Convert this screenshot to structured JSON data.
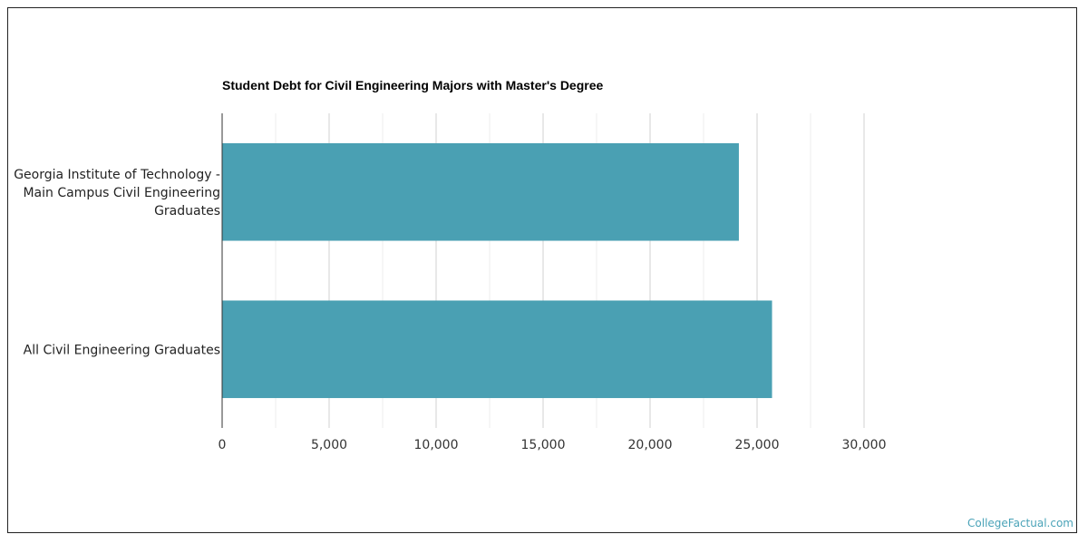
{
  "chart_data": {
    "type": "bar",
    "orientation": "horizontal",
    "title": "Student Debt for Civil Engineering Majors with Master's Degree",
    "categories": [
      "Georgia Institute of Technology - Main Campus Civil Engineering Graduates",
      "All Civil Engineering Graduates"
    ],
    "category_label_lines": [
      [
        "Georgia Institute of Technology -",
        "Main Campus Civil Engineering",
        "Graduates"
      ],
      [
        "All Civil Engineering Graduates"
      ]
    ],
    "values": [
      24150,
      25700
    ],
    "xlim": [
      0,
      30000
    ],
    "xticks": [
      0,
      5000,
      10000,
      15000,
      20000,
      25000,
      30000
    ],
    "xtick_labels": [
      "0",
      "5,000",
      "10,000",
      "15,000",
      "20,000",
      "25,000",
      "30,000"
    ],
    "grid": true,
    "xlabel": "",
    "ylabel": "",
    "bar_color": "#4aa0b3",
    "grid_color": "#dddddd",
    "axis_color": "#333333"
  },
  "footer": {
    "watermark": "CollegeFactual.com"
  }
}
